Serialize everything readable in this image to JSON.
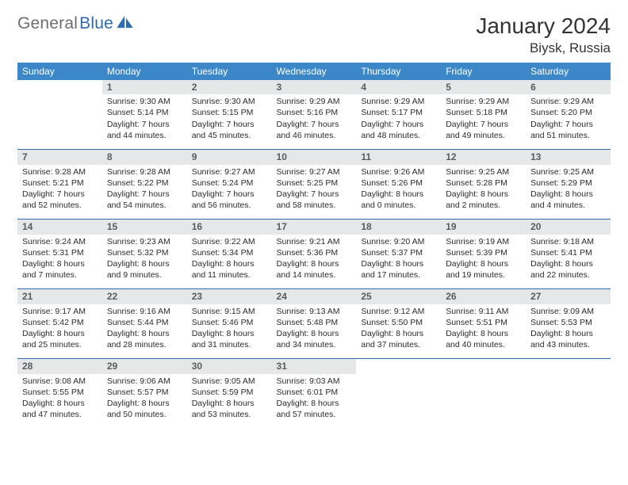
{
  "brand": {
    "part1": "General",
    "part2": "Blue",
    "icon_color": "#2e6bb0"
  },
  "header": {
    "month_title": "January 2024",
    "location": "Biysk, Russia"
  },
  "colors": {
    "header_bg": "#3b87c8",
    "header_text": "#ffffff",
    "daynum_bg": "#e6e7e8",
    "daynum_text": "#5a5b5d",
    "rule": "#2e6bb0",
    "body_text": "#2b2b2b"
  },
  "weekdays": [
    "Sunday",
    "Monday",
    "Tuesday",
    "Wednesday",
    "Thursday",
    "Friday",
    "Saturday"
  ],
  "first_weekday_index": 1,
  "days": [
    {
      "n": 1,
      "sunrise": "9:30 AM",
      "sunset": "5:14 PM",
      "daylight": "7 hours and 44 minutes."
    },
    {
      "n": 2,
      "sunrise": "9:30 AM",
      "sunset": "5:15 PM",
      "daylight": "7 hours and 45 minutes."
    },
    {
      "n": 3,
      "sunrise": "9:29 AM",
      "sunset": "5:16 PM",
      "daylight": "7 hours and 46 minutes."
    },
    {
      "n": 4,
      "sunrise": "9:29 AM",
      "sunset": "5:17 PM",
      "daylight": "7 hours and 48 minutes."
    },
    {
      "n": 5,
      "sunrise": "9:29 AM",
      "sunset": "5:18 PM",
      "daylight": "7 hours and 49 minutes."
    },
    {
      "n": 6,
      "sunrise": "9:29 AM",
      "sunset": "5:20 PM",
      "daylight": "7 hours and 51 minutes."
    },
    {
      "n": 7,
      "sunrise": "9:28 AM",
      "sunset": "5:21 PM",
      "daylight": "7 hours and 52 minutes."
    },
    {
      "n": 8,
      "sunrise": "9:28 AM",
      "sunset": "5:22 PM",
      "daylight": "7 hours and 54 minutes."
    },
    {
      "n": 9,
      "sunrise": "9:27 AM",
      "sunset": "5:24 PM",
      "daylight": "7 hours and 56 minutes."
    },
    {
      "n": 10,
      "sunrise": "9:27 AM",
      "sunset": "5:25 PM",
      "daylight": "7 hours and 58 minutes."
    },
    {
      "n": 11,
      "sunrise": "9:26 AM",
      "sunset": "5:26 PM",
      "daylight": "8 hours and 0 minutes."
    },
    {
      "n": 12,
      "sunrise": "9:25 AM",
      "sunset": "5:28 PM",
      "daylight": "8 hours and 2 minutes."
    },
    {
      "n": 13,
      "sunrise": "9:25 AM",
      "sunset": "5:29 PM",
      "daylight": "8 hours and 4 minutes."
    },
    {
      "n": 14,
      "sunrise": "9:24 AM",
      "sunset": "5:31 PM",
      "daylight": "8 hours and 7 minutes."
    },
    {
      "n": 15,
      "sunrise": "9:23 AM",
      "sunset": "5:32 PM",
      "daylight": "8 hours and 9 minutes."
    },
    {
      "n": 16,
      "sunrise": "9:22 AM",
      "sunset": "5:34 PM",
      "daylight": "8 hours and 11 minutes."
    },
    {
      "n": 17,
      "sunrise": "9:21 AM",
      "sunset": "5:36 PM",
      "daylight": "8 hours and 14 minutes."
    },
    {
      "n": 18,
      "sunrise": "9:20 AM",
      "sunset": "5:37 PM",
      "daylight": "8 hours and 17 minutes."
    },
    {
      "n": 19,
      "sunrise": "9:19 AM",
      "sunset": "5:39 PM",
      "daylight": "8 hours and 19 minutes."
    },
    {
      "n": 20,
      "sunrise": "9:18 AM",
      "sunset": "5:41 PM",
      "daylight": "8 hours and 22 minutes."
    },
    {
      "n": 21,
      "sunrise": "9:17 AM",
      "sunset": "5:42 PM",
      "daylight": "8 hours and 25 minutes."
    },
    {
      "n": 22,
      "sunrise": "9:16 AM",
      "sunset": "5:44 PM",
      "daylight": "8 hours and 28 minutes."
    },
    {
      "n": 23,
      "sunrise": "9:15 AM",
      "sunset": "5:46 PM",
      "daylight": "8 hours and 31 minutes."
    },
    {
      "n": 24,
      "sunrise": "9:13 AM",
      "sunset": "5:48 PM",
      "daylight": "8 hours and 34 minutes."
    },
    {
      "n": 25,
      "sunrise": "9:12 AM",
      "sunset": "5:50 PM",
      "daylight": "8 hours and 37 minutes."
    },
    {
      "n": 26,
      "sunrise": "9:11 AM",
      "sunset": "5:51 PM",
      "daylight": "8 hours and 40 minutes."
    },
    {
      "n": 27,
      "sunrise": "9:09 AM",
      "sunset": "5:53 PM",
      "daylight": "8 hours and 43 minutes."
    },
    {
      "n": 28,
      "sunrise": "9:08 AM",
      "sunset": "5:55 PM",
      "daylight": "8 hours and 47 minutes."
    },
    {
      "n": 29,
      "sunrise": "9:06 AM",
      "sunset": "5:57 PM",
      "daylight": "8 hours and 50 minutes."
    },
    {
      "n": 30,
      "sunrise": "9:05 AM",
      "sunset": "5:59 PM",
      "daylight": "8 hours and 53 minutes."
    },
    {
      "n": 31,
      "sunrise": "9:03 AM",
      "sunset": "6:01 PM",
      "daylight": "8 hours and 57 minutes."
    }
  ],
  "labels": {
    "sunrise": "Sunrise:",
    "sunset": "Sunset:",
    "daylight": "Daylight:"
  }
}
